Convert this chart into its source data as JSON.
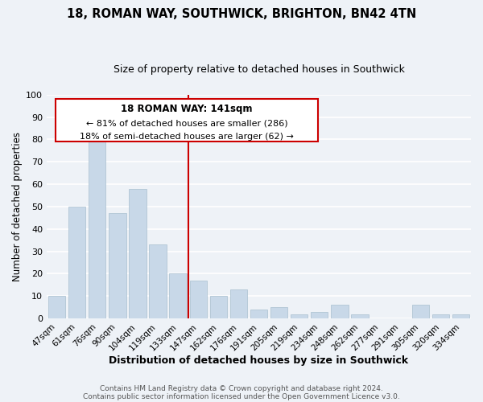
{
  "title": "18, ROMAN WAY, SOUTHWICK, BRIGHTON, BN42 4TN",
  "subtitle": "Size of property relative to detached houses in Southwick",
  "xlabel": "Distribution of detached houses by size in Southwick",
  "ylabel": "Number of detached properties",
  "bar_labels": [
    "47sqm",
    "61sqm",
    "76sqm",
    "90sqm",
    "104sqm",
    "119sqm",
    "133sqm",
    "147sqm",
    "162sqm",
    "176sqm",
    "191sqm",
    "205sqm",
    "219sqm",
    "234sqm",
    "248sqm",
    "262sqm",
    "277sqm",
    "291sqm",
    "305sqm",
    "320sqm",
    "334sqm"
  ],
  "bar_values_full": [
    10,
    50,
    79,
    47,
    58,
    33,
    20,
    17,
    10,
    13,
    4,
    5,
    2,
    3,
    6,
    2,
    0,
    0,
    6,
    2,
    2
  ],
  "bar_color": "#c8d8e8",
  "bar_edge_color": "#a8bfcf",
  "property_line_label": "18 ROMAN WAY: 141sqm",
  "annotation_line1": "← 81% of detached houses are smaller (286)",
  "annotation_line2": "18% of semi-detached houses are larger (62) →",
  "vline_color": "#cc0000",
  "box_edge_color": "#cc0000",
  "ylim": [
    0,
    100
  ],
  "yticks": [
    0,
    10,
    20,
    30,
    40,
    50,
    60,
    70,
    80,
    90,
    100
  ],
  "footer1": "Contains HM Land Registry data © Crown copyright and database right 2024.",
  "footer2": "Contains public sector information licensed under the Open Government Licence v3.0.",
  "bg_color": "#eef2f7",
  "plot_bg_color": "#eef2f7",
  "grid_color": "#ffffff",
  "title_fontsize": 10.5,
  "subtitle_fontsize": 9,
  "xlabel_fontsize": 9,
  "ylabel_fontsize": 8.5,
  "annotation_fontsize": 8,
  "footer_fontsize": 6.5
}
